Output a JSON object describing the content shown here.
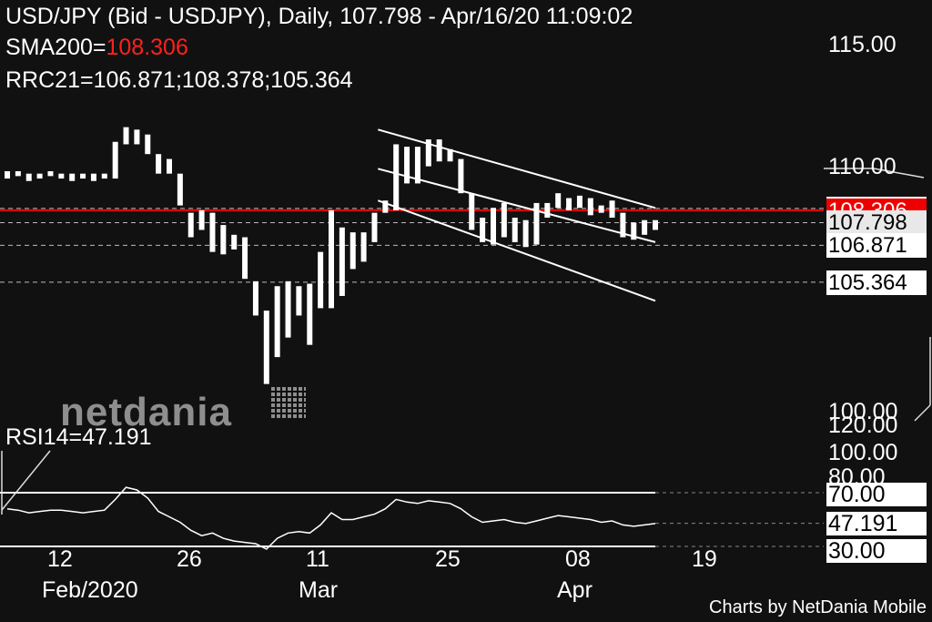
{
  "header": {
    "line1": "USD/JPY (Bid - USDJPY),  Daily, 107.798 - Apr/16/20 11:09:02",
    "sma_label": "SMA200=",
    "sma_value": "108.306",
    "rrc_line": "RRC21=106.871;108.378;105.364"
  },
  "logo_text": "netdania",
  "rsi_label": "RSI14=47.191",
  "footer": "Charts by NetDania Mobile",
  "colors": {
    "background": "#111111",
    "sma": "#ff0000",
    "candle": "#ffffff",
    "label_bg": "#ffffff",
    "label_text": "#000000"
  },
  "chart_data": {
    "type": "ohlc",
    "price_axis": {
      "ticks": [
        "115.00",
        "110.00",
        "100.00"
      ],
      "ylim": [
        99.4,
        116.9
      ]
    },
    "rsi_axis": {
      "ticks": [
        "120.00",
        "100.00",
        "80.00",
        "70.00",
        "47.191",
        "30.00"
      ]
    },
    "x_axis": {
      "ticks": [
        "12",
        "26",
        "11",
        "25",
        "08",
        "19"
      ],
      "month_labels": [
        "Feb/2020",
        "Mar",
        "Apr"
      ]
    },
    "price_labels": [
      "108.378",
      "108.306",
      "107.798",
      "106.871",
      "105.364"
    ],
    "sma200": 108.306,
    "rrc21": {
      "mid": 106.871,
      "upper": 108.378,
      "lower": 105.364
    },
    "bars": [
      {
        "h": 109.9,
        "l": 109.6
      },
      {
        "h": 109.9,
        "l": 109.7
      },
      {
        "h": 109.8,
        "l": 109.5
      },
      {
        "h": 109.8,
        "l": 109.6
      },
      {
        "h": 109.9,
        "l": 109.7
      },
      {
        "h": 109.8,
        "l": 109.6
      },
      {
        "h": 109.8,
        "l": 109.5
      },
      {
        "h": 109.8,
        "l": 109.6
      },
      {
        "h": 109.8,
        "l": 109.5
      },
      {
        "h": 109.8,
        "l": 109.6
      },
      {
        "h": 111.1,
        "l": 109.6
      },
      {
        "h": 111.7,
        "l": 111.0
      },
      {
        "h": 111.6,
        "l": 111.0
      },
      {
        "h": 111.4,
        "l": 110.6
      },
      {
        "h": 110.6,
        "l": 109.8
      },
      {
        "h": 110.4,
        "l": 109.8
      },
      {
        "h": 109.8,
        "l": 108.5
      },
      {
        "h": 108.2,
        "l": 107.2
      },
      {
        "h": 108.3,
        "l": 107.5
      },
      {
        "h": 108.2,
        "l": 106.6
      },
      {
        "h": 107.7,
        "l": 106.5
      },
      {
        "h": 107.3,
        "l": 106.7
      },
      {
        "h": 107.2,
        "l": 105.5
      },
      {
        "h": 105.4,
        "l": 104.0
      },
      {
        "h": 104.2,
        "l": 101.2
      },
      {
        "h": 105.2,
        "l": 102.3
      },
      {
        "h": 105.4,
        "l": 103.1
      },
      {
        "h": 105.2,
        "l": 104.0
      },
      {
        "h": 105.3,
        "l": 102.8
      },
      {
        "h": 106.6,
        "l": 104.3
      },
      {
        "h": 108.3,
        "l": 104.3
      },
      {
        "h": 107.6,
        "l": 104.8
      },
      {
        "h": 107.4,
        "l": 105.9
      },
      {
        "h": 107.4,
        "l": 106.2
      },
      {
        "h": 108.2,
        "l": 107.0
      },
      {
        "h": 108.7,
        "l": 108.2
      },
      {
        "h": 111.0,
        "l": 108.3
      },
      {
        "h": 110.9,
        "l": 109.4
      },
      {
        "h": 110.9,
        "l": 109.4
      },
      {
        "h": 111.2,
        "l": 110.1
      },
      {
        "h": 111.2,
        "l": 110.3
      },
      {
        "h": 110.8,
        "l": 110.3
      },
      {
        "h": 110.4,
        "l": 109.0
      },
      {
        "h": 109.0,
        "l": 107.5
      },
      {
        "h": 108.0,
        "l": 107.0
      },
      {
        "h": 108.4,
        "l": 106.9
      },
      {
        "h": 108.6,
        "l": 107.2
      },
      {
        "h": 108.0,
        "l": 107.0
      },
      {
        "h": 107.9,
        "l": 106.8
      },
      {
        "h": 108.6,
        "l": 106.9
      },
      {
        "h": 108.6,
        "l": 108.0
      },
      {
        "h": 109.0,
        "l": 108.4
      },
      {
        "h": 108.8,
        "l": 108.3
      },
      {
        "h": 108.9,
        "l": 108.4
      },
      {
        "h": 108.8,
        "l": 108.1
      },
      {
        "h": 108.5,
        "l": 108.2
      },
      {
        "h": 108.7,
        "l": 108.0
      },
      {
        "h": 108.2,
        "l": 107.2
      },
      {
        "h": 107.8,
        "l": 107.1
      },
      {
        "h": 107.9,
        "l": 107.3
      },
      {
        "h": 107.9,
        "l": 107.5
      }
    ],
    "channels": [
      {
        "name": "outer",
        "x0_bar": 35,
        "x1_bar": 60,
        "top": [
          111.6,
          108.4
        ],
        "bottom": [
          108.7,
          104.6
        ]
      },
      {
        "name": "inner",
        "x0_bar": 35,
        "x1_bar": 60,
        "top": [
          110.0,
          107.0
        ]
      }
    ],
    "rsi14": 47.191,
    "rsi_levels": [
      70,
      30
    ],
    "rsi_values": [
      58,
      57,
      55,
      56,
      57,
      57,
      56,
      55,
      56,
      57,
      65,
      74,
      72,
      66,
      56,
      52,
      48,
      42,
      38,
      40,
      36,
      34,
      33,
      32,
      28,
      36,
      40,
      41,
      40,
      46,
      55,
      50,
      50,
      52,
      54,
      58,
      65,
      63,
      62,
      64,
      63,
      62,
      58,
      52,
      48,
      49,
      50,
      48,
      47,
      49,
      51,
      53,
      52,
      51,
      50,
      48,
      49,
      46,
      45,
      46,
      47
    ]
  }
}
